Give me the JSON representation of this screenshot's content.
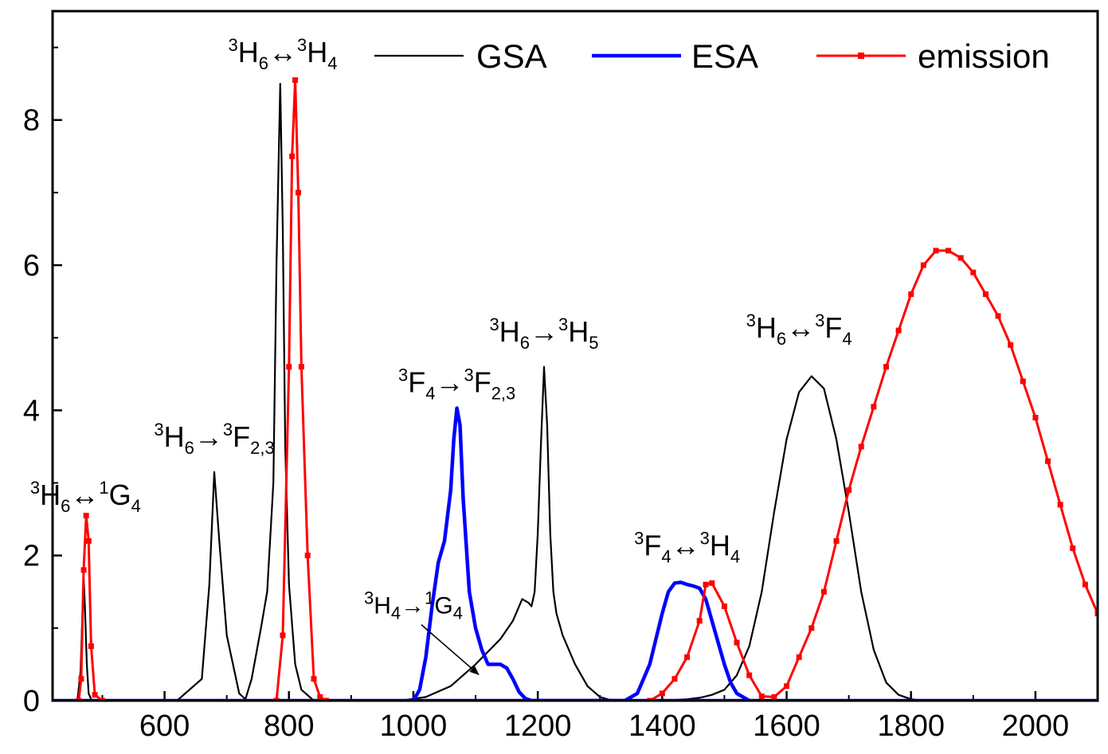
{
  "chart_data": {
    "type": "line",
    "title": "",
    "xlabel": "",
    "ylabel": "",
    "xlim": [
      420,
      2100
    ],
    "ylim": [
      0,
      9.5
    ],
    "grid": false,
    "legend_position": "top-right",
    "x_ticks": [
      600,
      800,
      1000,
      1200,
      1400,
      1600,
      1800,
      2000
    ],
    "y_ticks": [
      0,
      2,
      4,
      6,
      8
    ],
    "series": [
      {
        "name": "GSA",
        "color": "#000000",
        "marker": "none",
        "x": [
          460,
          465,
          468,
          470,
          472,
          475,
          478,
          482,
          486,
          620,
          660,
          672,
          680,
          688,
          700,
          720,
          730,
          740,
          755,
          765,
          775,
          780,
          786,
          790,
          794,
          800,
          810,
          820,
          840,
          980,
          1020,
          1060,
          1100,
          1140,
          1160,
          1175,
          1185,
          1190,
          1195,
          1200,
          1205,
          1210,
          1215,
          1220,
          1225,
          1230,
          1240,
          1260,
          1280,
          1300,
          1320,
          1340,
          1360,
          1380,
          1400,
          1420,
          1440,
          1460,
          1480,
          1500,
          1520,
          1540,
          1560,
          1580,
          1600,
          1620,
          1640,
          1660,
          1680,
          1700,
          1720,
          1740,
          1760,
          1780,
          1800,
          1820
        ],
        "values": [
          0,
          0.4,
          1.2,
          1.7,
          1.3,
          0.5,
          0.1,
          0.02,
          0,
          0,
          0.3,
          1.6,
          3.15,
          2.2,
          0.9,
          0.1,
          0.02,
          0.3,
          1.0,
          1.5,
          3.0,
          6.0,
          8.5,
          6.5,
          3.5,
          1.6,
          0.5,
          0.15,
          0,
          0,
          0.05,
          0.2,
          0.5,
          0.85,
          1.1,
          1.4,
          1.35,
          1.3,
          1.5,
          2.3,
          3.5,
          4.6,
          3.8,
          2.3,
          1.5,
          1.2,
          0.9,
          0.5,
          0.2,
          0.05,
          0,
          0,
          0,
          0,
          0,
          0.01,
          0.02,
          0.04,
          0.08,
          0.15,
          0.35,
          0.75,
          1.5,
          2.6,
          3.6,
          4.25,
          4.47,
          4.3,
          3.6,
          2.6,
          1.5,
          0.7,
          0.25,
          0.08,
          0.02,
          0
        ]
      },
      {
        "name": "ESA",
        "color": "#0000ff",
        "marker": "none",
        "x": [
          1000,
          1010,
          1020,
          1030,
          1040,
          1050,
          1060,
          1065,
          1070,
          1075,
          1080,
          1090,
          1100,
          1110,
          1120,
          1130,
          1140,
          1150,
          1160,
          1170,
          1180,
          1190,
          1340,
          1360,
          1380,
          1400,
          1410,
          1420,
          1430,
          1440,
          1450,
          1460,
          1470,
          1480,
          1490,
          1500,
          1510,
          1520,
          1540
        ],
        "values": [
          0,
          0.15,
          0.6,
          1.3,
          1.9,
          2.2,
          2.9,
          3.6,
          4.03,
          3.8,
          2.8,
          1.5,
          1.0,
          0.7,
          0.5,
          0.5,
          0.5,
          0.45,
          0.3,
          0.12,
          0.03,
          0,
          0,
          0.1,
          0.5,
          1.2,
          1.5,
          1.62,
          1.63,
          1.6,
          1.58,
          1.55,
          1.4,
          1.1,
          0.8,
          0.5,
          0.25,
          0.1,
          0
        ]
      },
      {
        "name": "emission",
        "color": "#ff0000",
        "marker": "square",
        "x": [
          462,
          466,
          470,
          474,
          478,
          482,
          488,
          500,
          780,
          790,
          800,
          805,
          810,
          815,
          820,
          830,
          840,
          850,
          860,
          1380,
          1400,
          1420,
          1440,
          1460,
          1470,
          1480,
          1500,
          1520,
          1540,
          1560,
          1580,
          1600,
          1620,
          1640,
          1660,
          1680,
          1700,
          1720,
          1740,
          1760,
          1780,
          1800,
          1820,
          1840,
          1860,
          1880,
          1900,
          1920,
          1940,
          1960,
          1980,
          2000,
          2020,
          2040,
          2060,
          2080,
          2100
        ],
        "values": [
          0,
          0.3,
          1.8,
          2.55,
          2.2,
          0.75,
          0.08,
          0,
          0,
          0.9,
          4.6,
          7.5,
          8.55,
          7.0,
          4.6,
          2.0,
          0.3,
          0.05,
          0,
          0,
          0.1,
          0.3,
          0.6,
          1.1,
          1.6,
          1.62,
          1.3,
          0.8,
          0.35,
          0.06,
          0.05,
          0.2,
          0.6,
          1.0,
          1.5,
          2.2,
          2.9,
          3.5,
          4.05,
          4.6,
          5.1,
          5.6,
          6.0,
          6.2,
          6.2,
          6.1,
          5.9,
          5.6,
          5.3,
          4.9,
          4.4,
          3.9,
          3.3,
          2.7,
          2.1,
          1.6,
          1.2
        ]
      }
    ],
    "annotations": [
      {
        "parts": [
          {
            "t": "sup",
            "v": "3"
          },
          {
            "t": "main",
            "v": "H"
          },
          {
            "t": "sub",
            "v": "6"
          },
          {
            "t": "main",
            "v": "↔"
          },
          {
            "t": "sup",
            "v": "1"
          },
          {
            "t": "main",
            "v": "G"
          },
          {
            "t": "sub",
            "v": "4"
          }
        ],
        "x": 473,
        "y": 2.7
      },
      {
        "parts": [
          {
            "t": "sup",
            "v": "3"
          },
          {
            "t": "main",
            "v": "H"
          },
          {
            "t": "sub",
            "v": "6"
          },
          {
            "t": "main",
            "v": "→"
          },
          {
            "t": "sup",
            "v": "3"
          },
          {
            "t": "main",
            "v": "F"
          },
          {
            "t": "sub",
            "v": "2,3"
          }
        ],
        "x": 680,
        "y": 3.5
      },
      {
        "parts": [
          {
            "t": "sup",
            "v": "3"
          },
          {
            "t": "main",
            "v": "H"
          },
          {
            "t": "sub",
            "v": "6"
          },
          {
            "t": "main",
            "v": "↔"
          },
          {
            "t": "sup",
            "v": "3"
          },
          {
            "t": "main",
            "v": "H"
          },
          {
            "t": "sub",
            "v": "4"
          }
        ],
        "x": 790,
        "y": 8.8
      },
      {
        "parts": [
          {
            "t": "sup",
            "v": "3"
          },
          {
            "t": "main",
            "v": "F"
          },
          {
            "t": "sub",
            "v": "4"
          },
          {
            "t": "main",
            "v": "→"
          },
          {
            "t": "sup",
            "v": "3"
          },
          {
            "t": "main",
            "v": "F"
          },
          {
            "t": "sub",
            "v": "2,3"
          }
        ],
        "x": 1070,
        "y": 4.25
      },
      {
        "parts": [
          {
            "t": "sup",
            "v": "3"
          },
          {
            "t": "main",
            "v": "H"
          },
          {
            "t": "sub",
            "v": "6"
          },
          {
            "t": "main",
            "v": "→"
          },
          {
            "t": "sup",
            "v": "3"
          },
          {
            "t": "main",
            "v": "H"
          },
          {
            "t": "sub",
            "v": "5"
          }
        ],
        "x": 1210,
        "y": 4.95
      },
      {
        "parts": [
          {
            "t": "sup",
            "v": "3"
          },
          {
            "t": "main",
            "v": "H"
          },
          {
            "t": "sub",
            "v": "6"
          },
          {
            "t": "main",
            "v": "↔"
          },
          {
            "t": "sup",
            "v": "3"
          },
          {
            "t": "main",
            "v": "F"
          },
          {
            "t": "sub",
            "v": "4"
          }
        ],
        "x": 1620,
        "y": 5.0
      },
      {
        "parts": [
          {
            "t": "sup",
            "v": "3"
          },
          {
            "t": "main",
            "v": "F"
          },
          {
            "t": "sub",
            "v": "4"
          },
          {
            "t": "main",
            "v": "↔"
          },
          {
            "t": "sup",
            "v": "3"
          },
          {
            "t": "main",
            "v": "H"
          },
          {
            "t": "sub",
            "v": "4"
          }
        ],
        "x": 1440,
        "y": 2.0
      },
      {
        "parts": [
          {
            "t": "sup",
            "v": "3"
          },
          {
            "t": "main",
            "v": "H"
          },
          {
            "t": "sub",
            "v": "4"
          },
          {
            "t": "main",
            "v": "→"
          },
          {
            "t": "sup",
            "v": "1"
          },
          {
            "t": "main",
            "v": "G"
          },
          {
            "t": "sub",
            "v": "4"
          }
        ],
        "x": 1000,
        "y": 1.2,
        "small": true,
        "arrow_to": [
          1105,
          0.36
        ]
      }
    ]
  }
}
